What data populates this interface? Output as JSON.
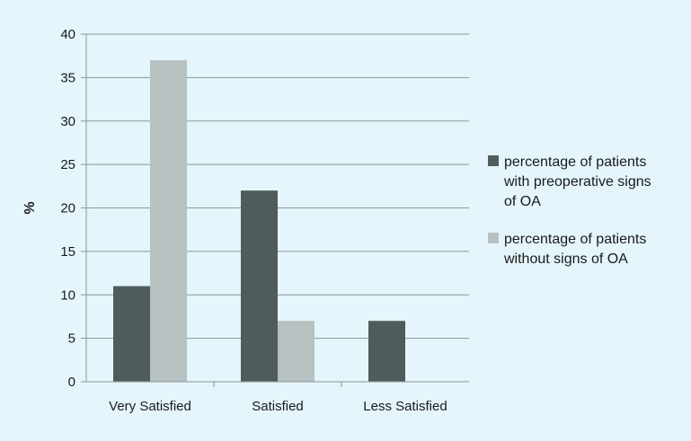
{
  "chart_data": {
    "type": "bar",
    "title": "",
    "xlabel": "",
    "ylabel": "%",
    "ylim": [
      0,
      40
    ],
    "yticks": [
      0,
      5,
      10,
      15,
      20,
      25,
      30,
      35,
      40
    ],
    "grid": true,
    "legend_position": "right",
    "categories": [
      "Very Satisfied",
      "Satisfied",
      "Less Satisfied"
    ],
    "series": [
      {
        "name": "percentage of patients with preoperative signs of OA",
        "name_lines": [
          "percentage of patients",
          "with preoperative signs",
          "of OA"
        ],
        "color": "#505b5b",
        "values": [
          11,
          22,
          7
        ]
      },
      {
        "name": "percentage of patients without signs of OA",
        "name_lines": [
          "percentage of patients",
          "without signs of OA"
        ],
        "color": "#b8c1c1",
        "values": [
          37,
          7,
          0
        ]
      }
    ]
  }
}
